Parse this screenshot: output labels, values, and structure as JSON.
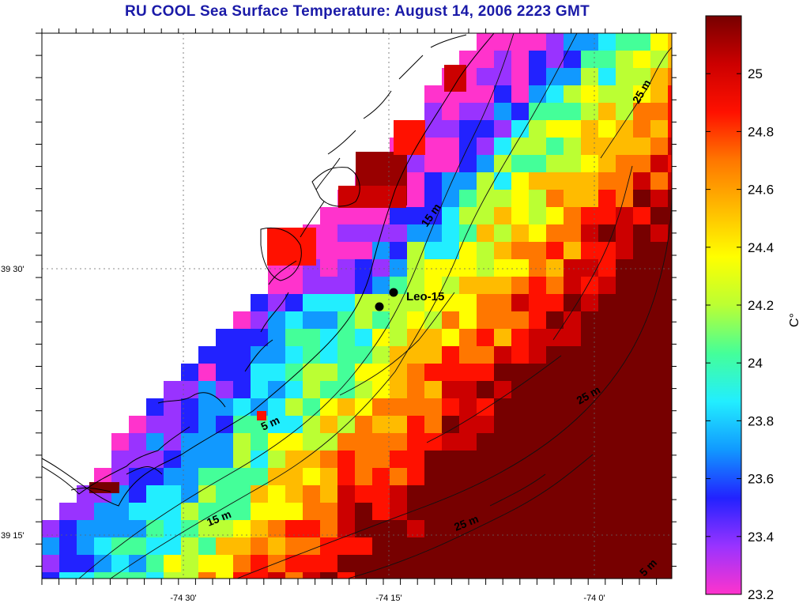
{
  "title": "RU COOL  Sea Surface Temperature:  August 14, 2006 2223 GMT",
  "axes": {
    "lat_labels": [
      "39 30'",
      "39 15'"
    ],
    "lon_labels": [
      "-74 30'",
      "-74 15'",
      "-74 0'"
    ]
  },
  "depth_labels": [
    "25 m",
    "15 m",
    "5 m",
    "25 m",
    "15 m",
    "25 m",
    "5 m"
  ],
  "stations": [
    {
      "name": "Leo-15"
    }
  ],
  "colorbar": {
    "unit": "C°",
    "min": 23.2,
    "max": 25.2,
    "ticks": [
      "25",
      "24.8",
      "24.6",
      "24.4",
      "24.2",
      "24",
      "23.8",
      "23.6",
      "23.4",
      "23.2"
    ],
    "colors": [
      "#ff33cc",
      "#9933ff",
      "#2222ff",
      "#1199ff",
      "#22eeff",
      "#44ff99",
      "#bbff33",
      "#ffff00",
      "#ffbb00",
      "#ff7700",
      "#ff1100",
      "#cc0000",
      "#770000"
    ]
  },
  "colors": {
    "title": "#1a1aa8",
    "coast": "#000000",
    "land": "#ffffff"
  }
}
